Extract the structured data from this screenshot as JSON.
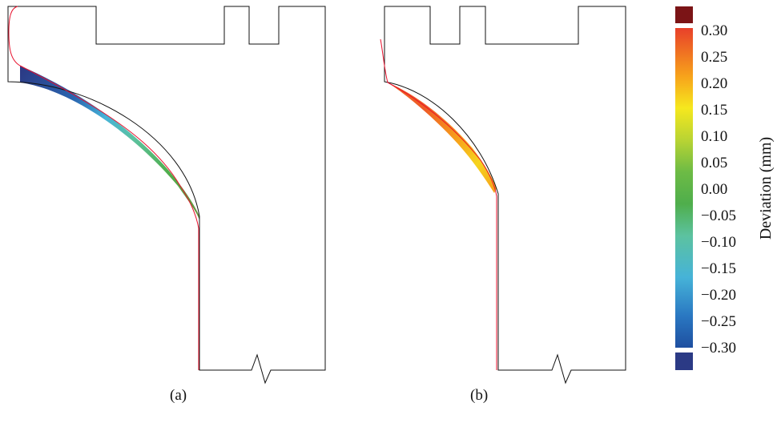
{
  "panels": {
    "a": {
      "caption": "(a)"
    },
    "b": {
      "caption": "(b)"
    }
  },
  "colorbar": {
    "title": "Deviation (mm)",
    "ticks": [
      "0.30",
      "0.25",
      "0.20",
      "0.15",
      "0.10",
      "0.05",
      "0.00",
      "−0.05",
      "−0.10",
      "−0.15",
      "−0.20",
      "−0.25",
      "−0.30"
    ],
    "range": [
      -0.3,
      0.3
    ],
    "over_color": "#7b1416",
    "under_color": "#2b3a85",
    "stops": [
      "#1e4fa0",
      "#2a78c2",
      "#46b3d8",
      "#5cc2a0",
      "#5aa845",
      "#8cc63f",
      "#d9e021",
      "#f6e81e",
      "#f7a21b",
      "#f06a24",
      "#e8402a"
    ]
  }
}
